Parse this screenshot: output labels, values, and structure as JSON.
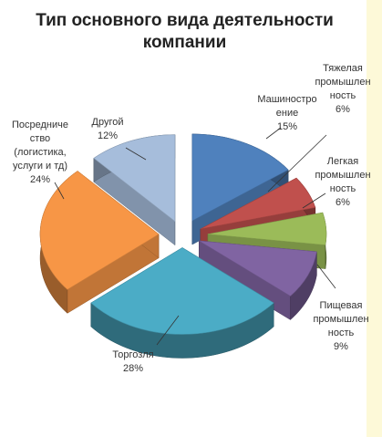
{
  "chart_data": {
    "type": "pie",
    "title_lines": [
      "Тип основного вида деятельности",
      "компании"
    ],
    "slices": [
      {
        "name_lines": [
          "Машиностро",
          "ение"
        ],
        "pct_label": "15%",
        "value": 15,
        "color": "#4f81bd"
      },
      {
        "name_lines": [
          "Тяжелая",
          "промышлен",
          "ность"
        ],
        "pct_label": "6%",
        "value": 6,
        "color": "#c0504d"
      },
      {
        "name_lines": [
          "Легкая",
          "промышлен",
          "ность"
        ],
        "pct_label": "6%",
        "value": 6,
        "color": "#9bbb59"
      },
      {
        "name_lines": [
          "Пищевая",
          "промышлен",
          "ность"
        ],
        "pct_label": "9%",
        "value": 9,
        "color": "#8064a2"
      },
      {
        "name_lines": [
          "Торгозля"
        ],
        "pct_label": "28%",
        "value": 28,
        "color": "#4bacc6"
      },
      {
        "name_lines": [
          "Посредниче",
          "ство",
          "(логистика,",
          "услуги и тд)"
        ],
        "pct_label": "24%",
        "value": 24,
        "color": "#f79646"
      },
      {
        "name_lines": [
          "Другой"
        ],
        "pct_label": "12%",
        "value": 12,
        "color": "#a6bddb"
      }
    ]
  }
}
